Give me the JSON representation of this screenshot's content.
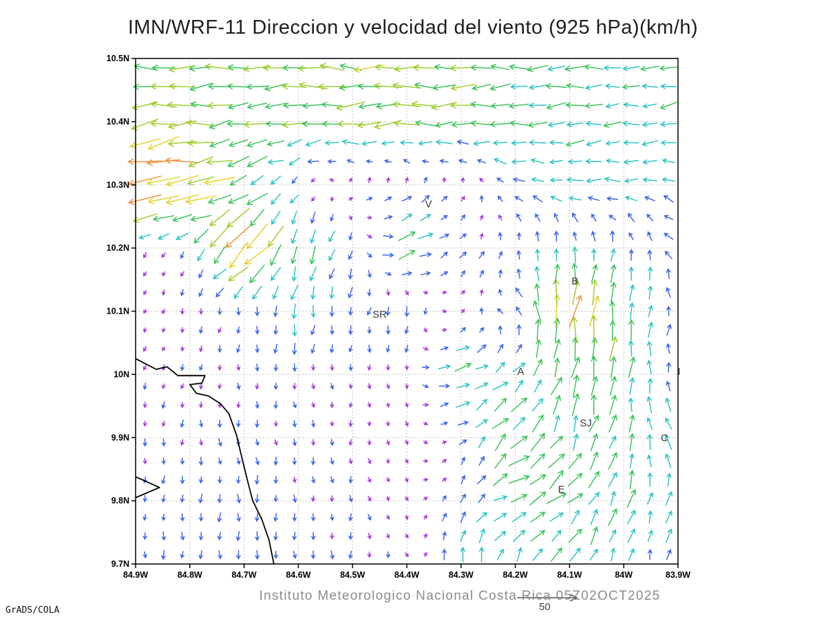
{
  "credit": "GrADS/COLA",
  "footer": {
    "institute_line": "Instituto Meteorologico Nacional Costa Rica 05Z02OCT2025",
    "reference_value": "50"
  },
  "chart_data": {
    "type": "quiver",
    "title": "IMN/WRF-11 Direccion y velocidad del viento (925 hPa)(km/h)",
    "xlabel": "",
    "ylabel": "",
    "units": "km/h",
    "grid": true,
    "reference_speed": 50,
    "lon_range": [
      -84.9,
      -83.9
    ],
    "lat_range": [
      9.7,
      10.5
    ],
    "lon_ticks": [
      {
        "v": -84.9,
        "label": "84.9W"
      },
      {
        "v": -84.8,
        "label": "84.8W"
      },
      {
        "v": -84.7,
        "label": "84.7W"
      },
      {
        "v": -84.6,
        "label": "84.6W"
      },
      {
        "v": -84.5,
        "label": "84.5W"
      },
      {
        "v": -84.4,
        "label": "84.4W"
      },
      {
        "v": -84.3,
        "label": "84.3W"
      },
      {
        "v": -84.2,
        "label": "84.2W"
      },
      {
        "v": -84.1,
        "label": "84.1W"
      },
      {
        "v": -84.0,
        "label": "84W"
      },
      {
        "v": -83.9,
        "label": "83.9W"
      }
    ],
    "lat_ticks": [
      {
        "v": 9.7,
        "label": "9.7N"
      },
      {
        "v": 9.8,
        "label": "9.8N"
      },
      {
        "v": 9.9,
        "label": "9.9N"
      },
      {
        "v": 10.0,
        "label": "10N"
      },
      {
        "v": 10.1,
        "label": "10.1N"
      },
      {
        "v": 10.2,
        "label": "10.2N"
      },
      {
        "v": 10.3,
        "label": "10.3N"
      },
      {
        "v": 10.4,
        "label": "10.4N"
      },
      {
        "v": 10.5,
        "label": "10.5N"
      }
    ],
    "stations": [
      {
        "label": "V",
        "lon": -84.36,
        "lat": 10.27
      },
      {
        "label": "SR",
        "lon": -84.45,
        "lat": 10.095
      },
      {
        "label": "B",
        "lon": -84.09,
        "lat": 10.148
      },
      {
        "label": "A",
        "lon": -84.19,
        "lat": 10.005
      },
      {
        "label": "I",
        "lon": -83.898,
        "lat": 10.005
      },
      {
        "label": "SJ",
        "lon": -84.07,
        "lat": 9.923
      },
      {
        "label": "C",
        "lon": -83.925,
        "lat": 9.9
      },
      {
        "label": "E",
        "lon": -84.115,
        "lat": 9.818
      }
    ],
    "control_lons": [
      -84.9,
      -84.8,
      -84.7,
      -84.6,
      -84.5,
      -84.4,
      -84.3,
      -84.2,
      -84.1,
      -84.0,
      -83.9
    ],
    "control_lats": [
      9.7,
      9.8,
      9.9,
      10.0,
      10.1,
      10.2,
      10.3,
      10.4,
      10.5
    ],
    "u": [
      [
        0,
        -1,
        0,
        1,
        0,
        2,
        2,
        3,
        8,
        4,
        2
      ],
      [
        -1,
        0,
        1,
        0,
        1,
        2,
        3,
        20,
        16,
        5,
        6
      ],
      [
        -1,
        0,
        1,
        1,
        0,
        2,
        5,
        14,
        9,
        2,
        -10
      ],
      [
        -2,
        -1,
        0,
        1,
        0,
        1,
        18,
        12,
        3,
        1,
        0
      ],
      [
        -2,
        -1,
        -1,
        -3,
        -2,
        -2,
        3,
        -8,
        4,
        2,
        1
      ],
      [
        -2,
        -5,
        -28,
        -6,
        -2,
        18,
        6,
        1,
        2,
        0,
        -8
      ],
      [
        -45,
        -38,
        -20,
        -4,
        4,
        5,
        2,
        -10,
        -14,
        -14,
        -10
      ],
      [
        -30,
        -26,
        -24,
        -24,
        -25,
        -26,
        -22,
        -20,
        -18,
        -16,
        -16
      ],
      [
        -22,
        -28,
        -26,
        -30,
        -28,
        -26,
        -22,
        -20,
        -18,
        -16,
        -18
      ]
    ],
    "v": [
      [
        -8,
        -8,
        -9,
        -8,
        -7,
        -4,
        16,
        13,
        16,
        12,
        12
      ],
      [
        -7,
        -8,
        -8,
        -7,
        -6,
        -3,
        10,
        6,
        14,
        17,
        12
      ],
      [
        -6,
        -7,
        -7,
        -6,
        -5,
        -4,
        5,
        16,
        18,
        16,
        12
      ],
      [
        -5,
        -5,
        -6,
        -6,
        -5,
        -4,
        4,
        10,
        22,
        20,
        10
      ],
      [
        -4,
        -5,
        -8,
        -16,
        -9,
        -10,
        4,
        8,
        40,
        20,
        8
      ],
      [
        -4,
        -6,
        -26,
        -18,
        -10,
        6,
        6,
        8,
        12,
        12,
        8
      ],
      [
        -6,
        -8,
        -10,
        -6,
        5,
        6,
        6,
        4,
        2,
        0,
        4
      ],
      [
        -4,
        -3,
        -2,
        -2,
        -2,
        -2,
        -2,
        -2,
        -2,
        -2,
        -3
      ],
      [
        -1,
        0,
        0,
        0,
        0,
        0,
        0,
        0,
        0,
        0,
        -2
      ]
    ],
    "speed_colors": [
      {
        "max": 6,
        "color": "#A53BE2"
      },
      {
        "max": 12,
        "color": "#3D66E8"
      },
      {
        "max": 18,
        "color": "#2EC4C4"
      },
      {
        "max": 25,
        "color": "#3BC45B"
      },
      {
        "max": 32,
        "color": "#9FCE30"
      },
      {
        "max": 38,
        "color": "#E3D32C"
      },
      {
        "max": 45,
        "color": "#F0923A"
      },
      {
        "max": 999,
        "color": "#EE4438"
      }
    ],
    "coastlines": [
      [
        [
          -84.9,
          10.025
        ],
        [
          -84.862,
          10.008
        ],
        [
          -84.842,
          10.012
        ],
        [
          -84.822,
          9.998
        ],
        [
          -84.772,
          9.998
        ],
        [
          -84.778,
          9.986
        ],
        [
          -84.8,
          9.984
        ],
        [
          -84.788,
          9.97
        ],
        [
          -84.766,
          9.966
        ],
        [
          -84.744,
          9.954
        ],
        [
          -84.728,
          9.938
        ],
        [
          -84.714,
          9.904
        ],
        [
          -84.704,
          9.868
        ],
        [
          -84.694,
          9.833
        ],
        [
          -84.684,
          9.8
        ],
        [
          -84.667,
          9.77
        ],
        [
          -84.654,
          9.738
        ],
        [
          -84.645,
          9.7
        ]
      ],
      [
        [
          -84.9,
          9.838
        ],
        [
          -84.856,
          9.821
        ],
        [
          -84.9,
          9.805
        ]
      ]
    ]
  }
}
